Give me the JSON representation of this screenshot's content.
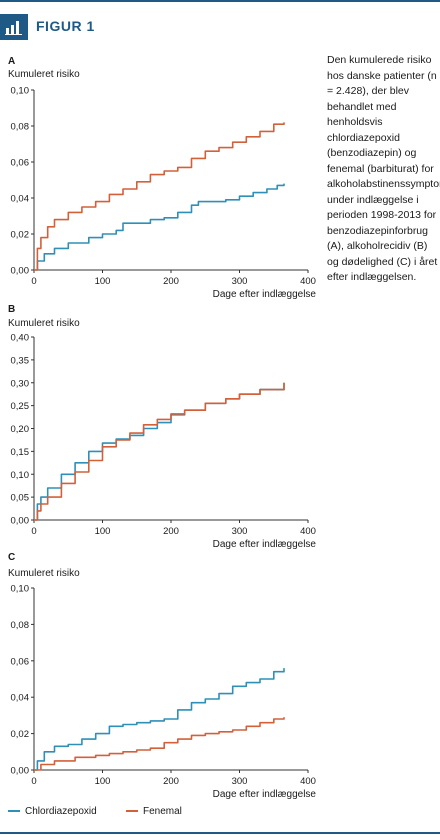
{
  "header": {
    "figure_label": "FIGUR 1",
    "icon": "bar-chart-icon",
    "accent_color": "#1f5a87"
  },
  "caption": "Den kumulerede risiko hos danske patienter (n = 2.428), der blev behandlet med henholdsvis chlordiazepoxid (benzodiazepin) og fenemal (barbiturat) for alkoholabstinenssymptomer under indlæggelse i perioden 1998-2013 for benzodiazepinforbrug (A), alkoholrecidiv (B) og dødelighed (C) i året efter indlæggelsen.",
  "legend": [
    {
      "name": "Chlordiazepoxid",
      "color": "#2f8fb7"
    },
    {
      "name": "Fenemal",
      "color": "#d4603a"
    }
  ],
  "chart_data": [
    {
      "panel": "A",
      "type": "line",
      "ylabel": "Kumuleret risiko",
      "xlabel": "Dage efter indlæggelse",
      "xlim": [
        0,
        400
      ],
      "ylim": [
        0,
        0.1
      ],
      "xticks": [
        "0",
        "100",
        "200",
        "300",
        "400"
      ],
      "yticks": [
        "0,00",
        "0,02",
        "0,04",
        "0,06",
        "0,08",
        "0,10"
      ],
      "series": [
        {
          "name": "Chlordiazepoxid",
          "color": "#2f8fb7",
          "x": [
            0,
            5,
            15,
            30,
            50,
            80,
            100,
            120,
            130,
            170,
            190,
            210,
            230,
            240,
            280,
            300,
            320,
            340,
            355,
            365
          ],
          "y": [
            0,
            0.005,
            0.009,
            0.012,
            0.015,
            0.018,
            0.02,
            0.022,
            0.026,
            0.028,
            0.029,
            0.032,
            0.036,
            0.038,
            0.039,
            0.041,
            0.043,
            0.045,
            0.047,
            0.048
          ]
        },
        {
          "name": "Fenemal",
          "color": "#d4603a",
          "x": [
            0,
            5,
            10,
            20,
            30,
            50,
            70,
            90,
            110,
            130,
            150,
            170,
            190,
            210,
            230,
            250,
            270,
            290,
            310,
            330,
            350,
            365
          ],
          "y": [
            0,
            0.012,
            0.018,
            0.024,
            0.028,
            0.032,
            0.035,
            0.038,
            0.042,
            0.045,
            0.049,
            0.053,
            0.055,
            0.057,
            0.062,
            0.066,
            0.068,
            0.071,
            0.074,
            0.077,
            0.081,
            0.082
          ]
        }
      ]
    },
    {
      "panel": "B",
      "type": "line",
      "ylabel": "Kumuleret risiko",
      "xlabel": "Dage efter indlæggelse",
      "xlim": [
        0,
        400
      ],
      "ylim": [
        0,
        0.4
      ],
      "xticks": [
        "0",
        "100",
        "200",
        "300",
        "400"
      ],
      "yticks": [
        "0,00",
        "0,05",
        "0,10",
        "0,15",
        "0,20",
        "0,25",
        "0,30",
        "0,35",
        "0,40"
      ],
      "series": [
        {
          "name": "Chlordiazepoxid",
          "color": "#2f8fb7",
          "x": [
            0,
            5,
            10,
            20,
            40,
            60,
            80,
            100,
            120,
            140,
            160,
            180,
            200,
            220,
            250,
            280,
            300,
            330,
            365
          ],
          "y": [
            0,
            0.035,
            0.05,
            0.07,
            0.1,
            0.125,
            0.15,
            0.168,
            0.177,
            0.185,
            0.2,
            0.213,
            0.23,
            0.24,
            0.255,
            0.265,
            0.275,
            0.285,
            0.3
          ]
        },
        {
          "name": "Fenemal",
          "color": "#d4603a",
          "x": [
            0,
            5,
            10,
            20,
            40,
            60,
            80,
            100,
            120,
            140,
            160,
            180,
            200,
            220,
            250,
            280,
            300,
            330,
            365
          ],
          "y": [
            0,
            0.02,
            0.035,
            0.05,
            0.08,
            0.105,
            0.13,
            0.16,
            0.175,
            0.19,
            0.208,
            0.22,
            0.232,
            0.24,
            0.255,
            0.265,
            0.275,
            0.285,
            0.3
          ]
        }
      ]
    },
    {
      "panel": "C",
      "type": "line",
      "ylabel": "Kumuleret risiko",
      "xlabel": "Dage efter indlæggelse",
      "xlim": [
        0,
        400
      ],
      "ylim": [
        0,
        0.1
      ],
      "xticks": [
        "0",
        "100",
        "200",
        "300",
        "400"
      ],
      "yticks": [
        "0,00",
        "0,02",
        "0,04",
        "0,06",
        "0,08",
        "0,10"
      ],
      "series": [
        {
          "name": "Chlordiazepoxid",
          "color": "#2f8fb7",
          "x": [
            0,
            5,
            15,
            30,
            50,
            70,
            90,
            110,
            130,
            150,
            170,
            190,
            210,
            230,
            250,
            270,
            290,
            310,
            330,
            350,
            365
          ],
          "y": [
            0,
            0.005,
            0.01,
            0.013,
            0.014,
            0.017,
            0.02,
            0.024,
            0.025,
            0.026,
            0.027,
            0.028,
            0.033,
            0.037,
            0.039,
            0.042,
            0.046,
            0.048,
            0.05,
            0.054,
            0.056
          ]
        },
        {
          "name": "Fenemal",
          "color": "#d4603a",
          "x": [
            0,
            10,
            30,
            60,
            90,
            110,
            130,
            150,
            170,
            190,
            210,
            230,
            250,
            270,
            290,
            310,
            330,
            350,
            365
          ],
          "y": [
            0,
            0.003,
            0.005,
            0.007,
            0.008,
            0.009,
            0.01,
            0.011,
            0.012,
            0.015,
            0.017,
            0.019,
            0.02,
            0.021,
            0.022,
            0.024,
            0.026,
            0.028,
            0.029
          ]
        }
      ]
    }
  ]
}
